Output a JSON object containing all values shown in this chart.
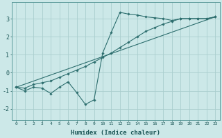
{
  "xlabel": "Humidex (Indice chaleur)",
  "xlim": [
    -0.5,
    23.5
  ],
  "ylim": [
    -2.6,
    3.9
  ],
  "yticks": [
    -2,
    -1,
    0,
    1,
    2,
    3
  ],
  "xticks": [
    0,
    1,
    2,
    3,
    4,
    5,
    6,
    7,
    8,
    9,
    10,
    11,
    12,
    13,
    14,
    15,
    16,
    17,
    18,
    19,
    20,
    21,
    22,
    23
  ],
  "bg_color": "#cce8e8",
  "line_color": "#2d6e6e",
  "grid_color": "#aacece",
  "line1_x": [
    0,
    1,
    2,
    3,
    4,
    5,
    6,
    7,
    8,
    9,
    10,
    11,
    12,
    13,
    14,
    15,
    16,
    17,
    18,
    19,
    20,
    21,
    22,
    23
  ],
  "line1_y": [
    -0.8,
    -1.0,
    -0.8,
    -0.85,
    -1.15,
    -0.8,
    -0.5,
    -1.1,
    -1.75,
    -1.5,
    1.1,
    2.25,
    3.35,
    3.25,
    3.2,
    3.1,
    3.05,
    3.0,
    2.9,
    3.0,
    3.0,
    3.0,
    3.0,
    3.1
  ],
  "line2_x": [
    0,
    1,
    2,
    3,
    4,
    5,
    6,
    7,
    8,
    9,
    10,
    11,
    12,
    13,
    14,
    15,
    16,
    17,
    18,
    19,
    20,
    21,
    22,
    23
  ],
  "line2_y": [
    -0.8,
    -0.85,
    -0.65,
    -0.55,
    -0.45,
    -0.25,
    -0.05,
    0.15,
    0.35,
    0.6,
    0.85,
    1.1,
    1.4,
    1.7,
    2.0,
    2.3,
    2.5,
    2.7,
    2.85,
    3.0,
    3.0,
    3.0,
    3.0,
    3.1
  ],
  "line3_x": [
    0,
    23
  ],
  "line3_y": [
    -0.8,
    3.1
  ],
  "xlabel_fontsize": 6.5,
  "xtick_fontsize": 4.5,
  "ytick_fontsize": 6.0
}
